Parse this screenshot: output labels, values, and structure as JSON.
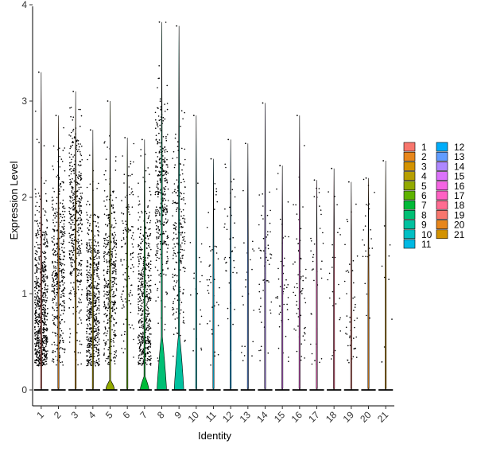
{
  "chart_data": {
    "type": "violin",
    "xlabel": "Identity",
    "ylabel": "Expression Level",
    "ylim": [
      0,
      4
    ],
    "yticks": [
      "0",
      "1",
      "2",
      "3",
      "4"
    ],
    "grid": false,
    "legend_position": "right",
    "categories": [
      "1",
      "2",
      "3",
      "4",
      "5",
      "6",
      "7",
      "8",
      "9",
      "10",
      "11",
      "12",
      "13",
      "14",
      "15",
      "16",
      "17",
      "18",
      "19",
      "20",
      "21"
    ],
    "colors": [
      "#F8766D",
      "#E7861B",
      "#D39200",
      "#B79F00",
      "#93AA00",
      "#5EB300",
      "#00BA38",
      "#00BF74",
      "#00C19F",
      "#00BFC4",
      "#00B9E3",
      "#00ADFA",
      "#619CFF",
      "#AE87FF",
      "#DB72FB",
      "#F564E3",
      "#FF61C3",
      "#FF6C91",
      "#F8766D",
      "#E7861B",
      "#D39200"
    ],
    "max_values": [
      3.3,
      2.85,
      3.1,
      2.7,
      3.0,
      2.62,
      2.6,
      3.82,
      3.78,
      2.85,
      2.4,
      2.6,
      2.56,
      2.98,
      2.33,
      2.85,
      2.18,
      2.3,
      2.16,
      2.2,
      2.38
    ],
    "point_density": [
      700,
      420,
      420,
      560,
      380,
      130,
      480,
      340,
      210,
      20,
      40,
      40,
      22,
      60,
      45,
      60,
      40,
      25,
      50,
      25,
      10
    ],
    "point_center": [
      0.8,
      1.2,
      1.7,
      0.9,
      1.2,
      1.4,
      0.9,
      2.0,
      1.6,
      1.0,
      1.0,
      1.5,
      1.0,
      1.2,
      1.0,
      1.2,
      1.0,
      1.0,
      0.7,
      1.5,
      1.0
    ],
    "zero_violin_height": [
      0.02,
      0.02,
      0.02,
      0.02,
      0.1,
      0.02,
      0.14,
      0.55,
      0.57,
      0.02,
      0.02,
      0.02,
      0.02,
      0.02,
      0.02,
      0.02,
      0.02,
      0.02,
      0.02,
      0.02,
      0.02
    ],
    "zero_violin_width": [
      0.05,
      0.05,
      0.05,
      0.05,
      0.5,
      0.05,
      0.5,
      0.55,
      0.55,
      0.05,
      0.05,
      0.05,
      0.05,
      0.05,
      0.05,
      0.05,
      0.05,
      0.05,
      0.05,
      0.05,
      0.05
    ],
    "legend": {
      "columns": [
        [
          "1",
          "2",
          "3",
          "4",
          "5",
          "6",
          "7",
          "8",
          "9",
          "10",
          "11"
        ],
        [
          "12",
          "13",
          "14",
          "15",
          "16",
          "17",
          "18",
          "19",
          "20",
          "21"
        ]
      ]
    }
  }
}
